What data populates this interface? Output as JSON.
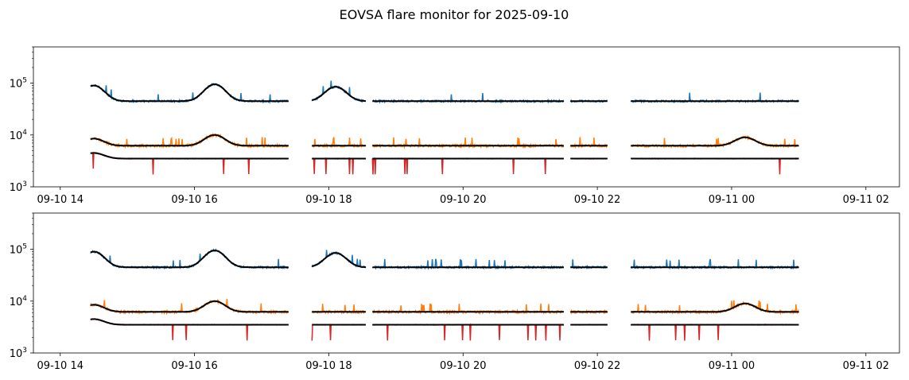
{
  "figure": {
    "title": "EOVSA flare monitor for 2025-09-10"
  },
  "chart_data": [
    {
      "type": "line",
      "panel": "top",
      "yscale": "log",
      "ylim": [
        1000,
        500000
      ],
      "xlim_hours": [
        13.6,
        26.5
      ],
      "xticks": [
        {
          "hour": 14,
          "label": "09-10 14"
        },
        {
          "hour": 16,
          "label": "09-10 16"
        },
        {
          "hour": 18,
          "label": "09-10 18"
        },
        {
          "hour": 20,
          "label": "09-10 20"
        },
        {
          "hour": 22,
          "label": "09-10 22"
        },
        {
          "hour": 24,
          "label": "09-11 00"
        },
        {
          "hour": 26,
          "label": "09-11 02"
        }
      ],
      "yticks": [
        {
          "value": 1000,
          "base": "10",
          "exp": "3"
        },
        {
          "value": 10000,
          "base": "10",
          "exp": "4"
        },
        {
          "value": 100000,
          "base": "10",
          "exp": "5"
        }
      ],
      "segments_hours": [
        [
          14.45,
          17.4
        ],
        [
          17.75,
          18.55
        ],
        [
          18.65,
          21.5
        ],
        [
          21.6,
          22.15
        ],
        [
          22.5,
          25.0
        ]
      ],
      "series": [
        {
          "name": "high",
          "color": "#1f77b4",
          "baseline": 45000,
          "features": [
            [
              14.5,
              90000
            ],
            [
              16.3,
              95000
            ],
            [
              18.1,
              85000
            ]
          ],
          "noise": 0.08
        },
        {
          "name": "mid",
          "color": "#ff7f0e",
          "baseline": 6200,
          "features": [
            [
              14.5,
              8500
            ],
            [
              16.3,
              10000
            ],
            [
              24.2,
              9000
            ]
          ],
          "noise": 0.1
        },
        {
          "name": "low",
          "color": "#d62728",
          "baseline": 3500,
          "features": [
            [
              14.5,
              4500
            ]
          ],
          "noise": 0.03
        }
      ],
      "smooth_color": "#000000"
    },
    {
      "type": "line",
      "panel": "bottom",
      "yscale": "log",
      "ylim": [
        1000,
        500000
      ],
      "xlim_hours": [
        13.6,
        26.5
      ],
      "xticks": [
        {
          "hour": 14,
          "label": "09-10 14"
        },
        {
          "hour": 16,
          "label": "09-10 16"
        },
        {
          "hour": 18,
          "label": "09-10 18"
        },
        {
          "hour": 20,
          "label": "09-10 20"
        },
        {
          "hour": 22,
          "label": "09-10 22"
        },
        {
          "hour": 24,
          "label": "09-11 00"
        },
        {
          "hour": 26,
          "label": "09-11 02"
        }
      ],
      "yticks": [
        {
          "value": 1000,
          "base": "10",
          "exp": "3"
        },
        {
          "value": 10000,
          "base": "10",
          "exp": "4"
        },
        {
          "value": 100000,
          "base": "10",
          "exp": "5"
        }
      ],
      "segments_hours": [
        [
          14.45,
          17.4
        ],
        [
          17.75,
          18.55
        ],
        [
          18.65,
          21.5
        ],
        [
          21.6,
          22.15
        ],
        [
          22.5,
          25.0
        ]
      ],
      "series": [
        {
          "name": "high",
          "color": "#1f77b4",
          "baseline": 45000,
          "features": [
            [
              14.5,
              90000
            ],
            [
              16.3,
              95000
            ],
            [
              18.1,
              85000
            ]
          ],
          "noise": 0.08
        },
        {
          "name": "mid",
          "color": "#ff7f0e",
          "baseline": 6200,
          "features": [
            [
              14.5,
              8500
            ],
            [
              16.3,
              10000
            ],
            [
              24.2,
              9000
            ]
          ],
          "noise": 0.1
        },
        {
          "name": "low",
          "color": "#d62728",
          "baseline": 3500,
          "features": [
            [
              14.5,
              4500
            ]
          ],
          "noise": 0.03
        }
      ],
      "smooth_color": "#000000"
    }
  ]
}
